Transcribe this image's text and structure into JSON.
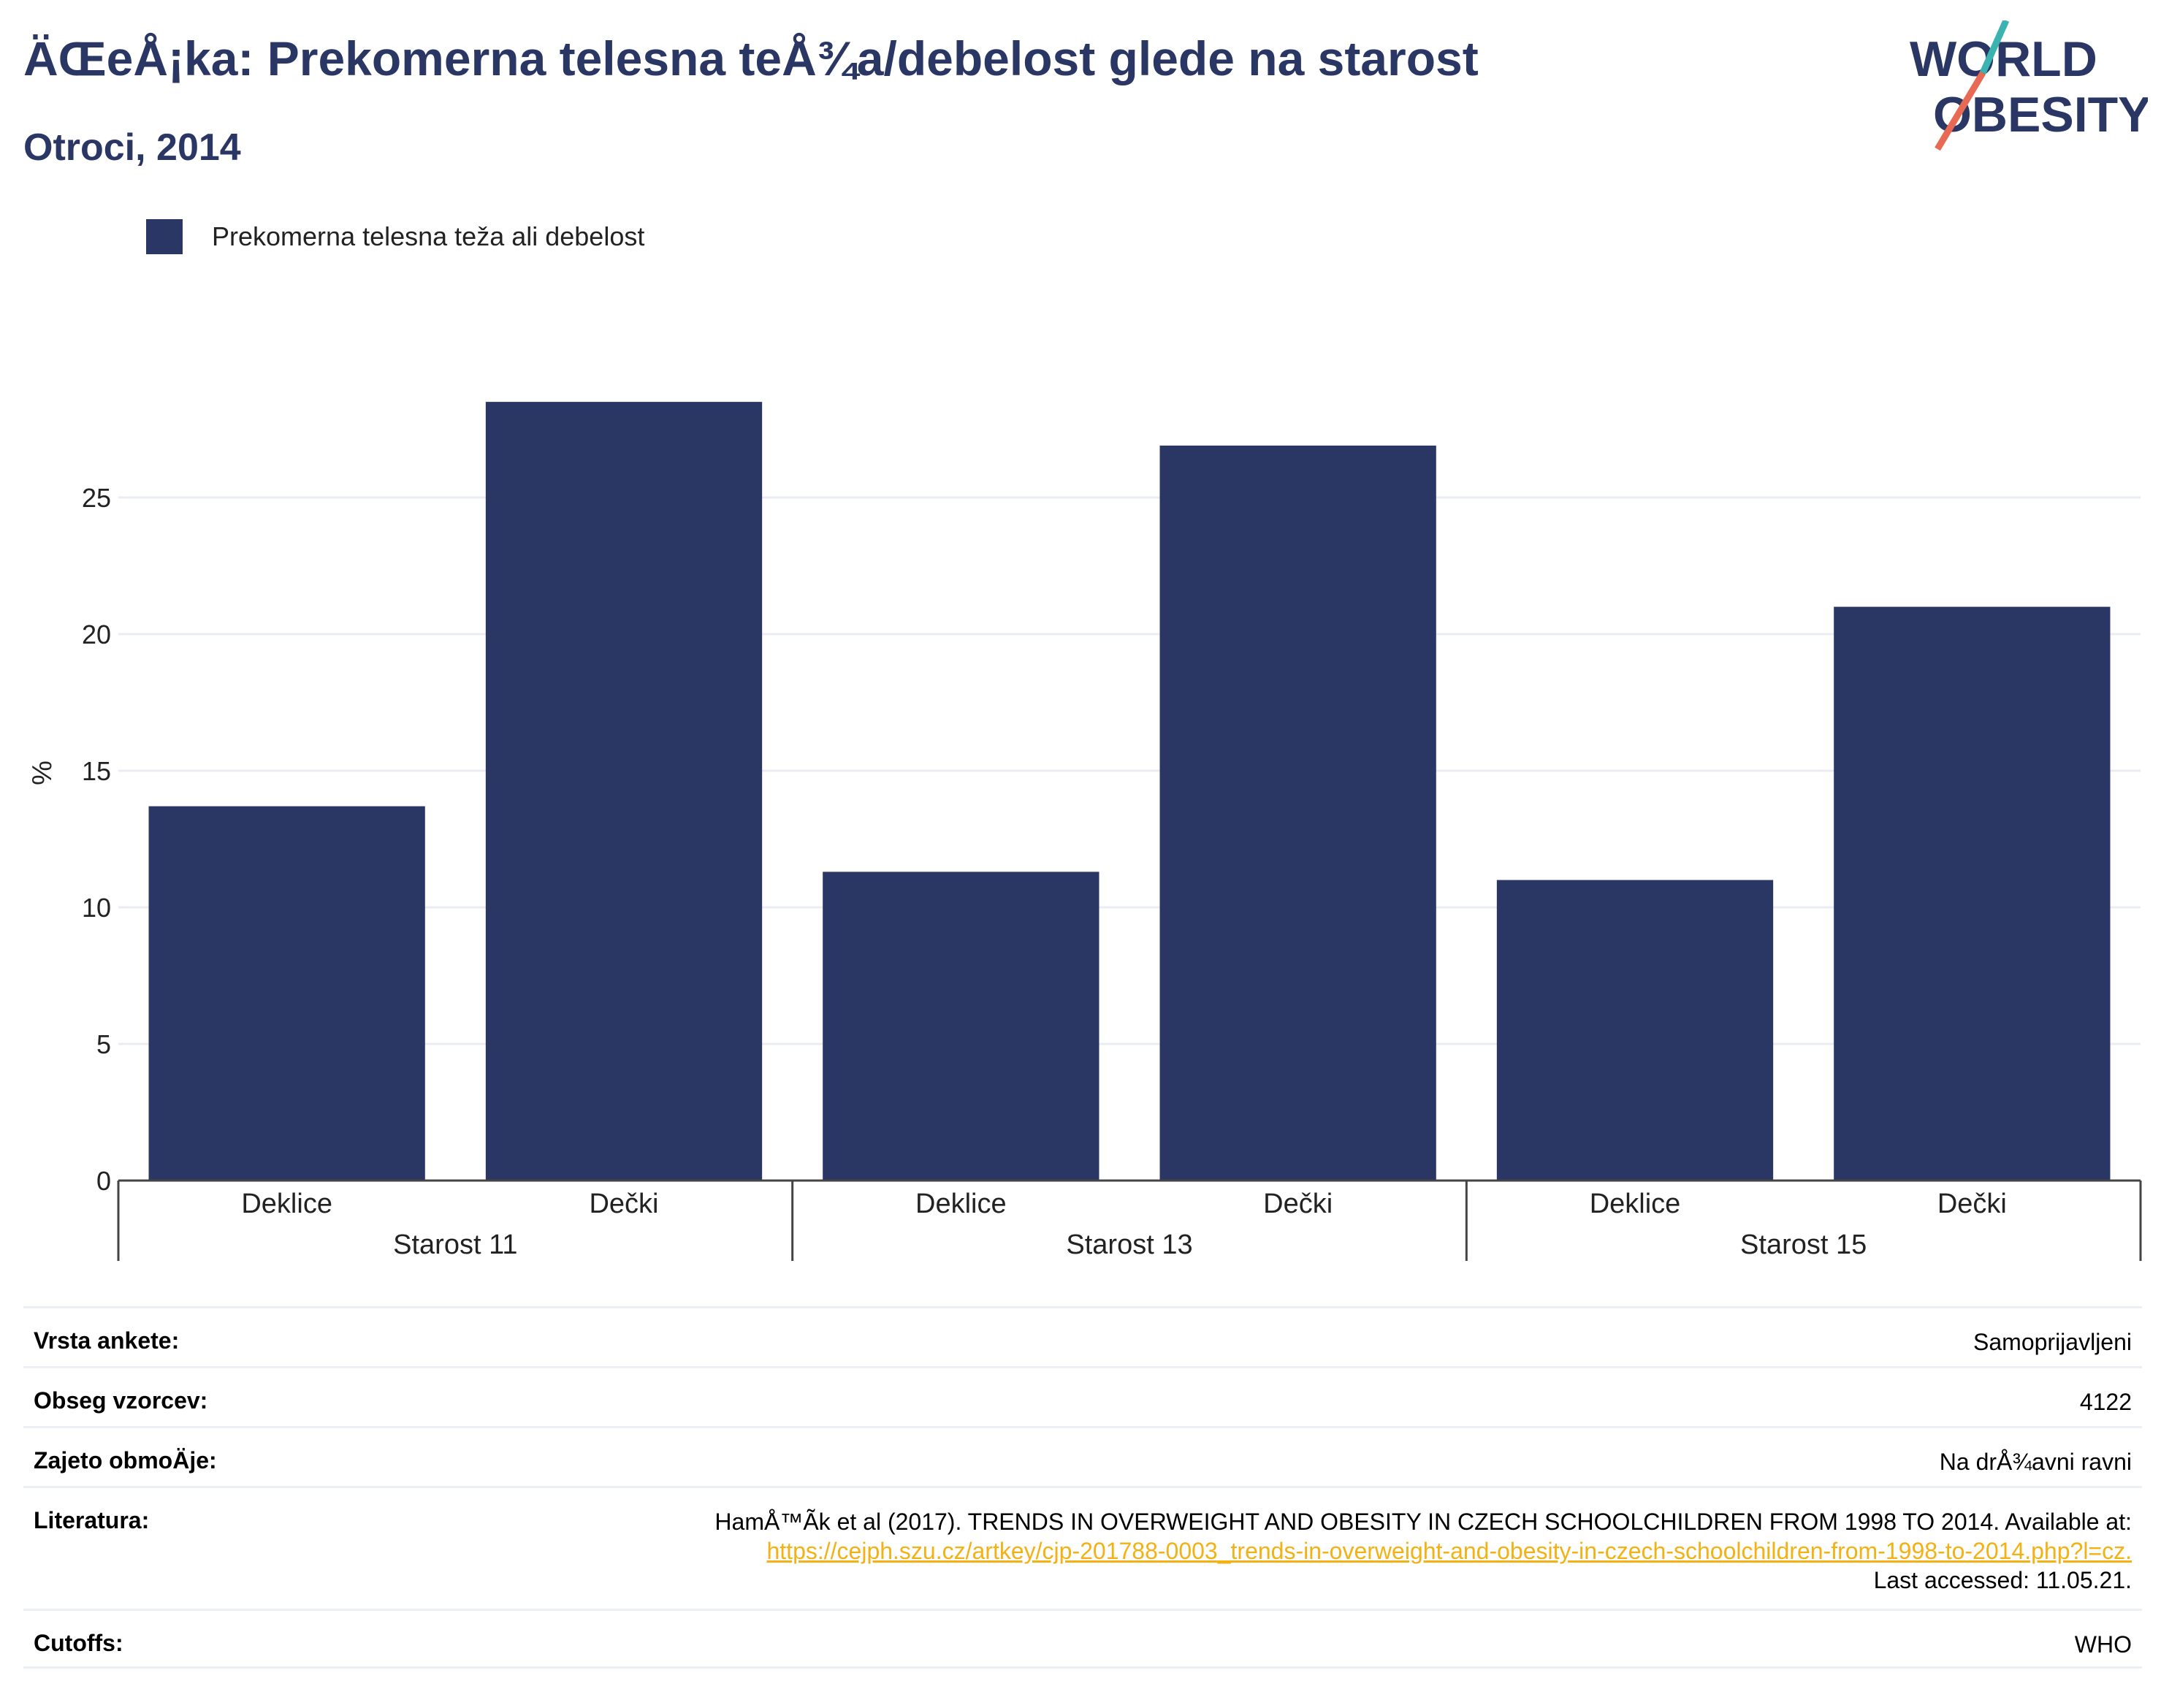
{
  "header": {
    "title": "ÄŒeÅ¡ka: Prekomerna telesna teÅ¾a/debelost glede na starost",
    "subtitle": "Otroci, 2014"
  },
  "logo": {
    "line1": "WORLD",
    "line2": "OBESITY"
  },
  "legend": {
    "label": "Prekomerna telesna teža ali debelost"
  },
  "chart_data": {
    "type": "bar",
    "categories": [
      "Deklice",
      "Dečki",
      "Deklice",
      "Dečki",
      "Deklice",
      "Dečki"
    ],
    "groups": [
      "Starost 11",
      "Starost 13",
      "Starost 15"
    ],
    "series": [
      {
        "name": "Prekomerna telesna teža ali debelost",
        "values": [
          13.7,
          28.5,
          11.3,
          26.9,
          11.0,
          21.0
        ]
      }
    ],
    "ylabel": "%",
    "ylim": [
      0,
      30
    ],
    "yticks": [
      0,
      5,
      10,
      15,
      20,
      25
    ],
    "grid": true,
    "legend_position": "top-left",
    "bar_color": "#2a3663"
  },
  "meta": {
    "rows": [
      {
        "key": "Vrsta ankete:",
        "value": "Samoprijavljeni"
      },
      {
        "key": "Obseg vzorcev:",
        "value": "4122"
      },
      {
        "key": "Zajeto obmoÄje:",
        "value": "Na drÅ¾avni ravni"
      }
    ],
    "literature": {
      "key": "Literatura:",
      "text": "HamÅ™Ã­k et al (2017). TRENDS IN OVERWEIGHT AND OBESITY IN CZECH SCHOOLCHILDREN FROM 1998 TO 2014. Available at:",
      "link": "https://cejph.szu.cz/artkey/cjp-201788-0003_trends-in-overweight-and-obesity-in-czech-schoolchildren-from-1998-to-2014.php?l=cz.",
      "accessed": "Last accessed: 11.05.21."
    },
    "cutoffs": {
      "key": "Cutoffs:",
      "value": "WHO"
    }
  }
}
